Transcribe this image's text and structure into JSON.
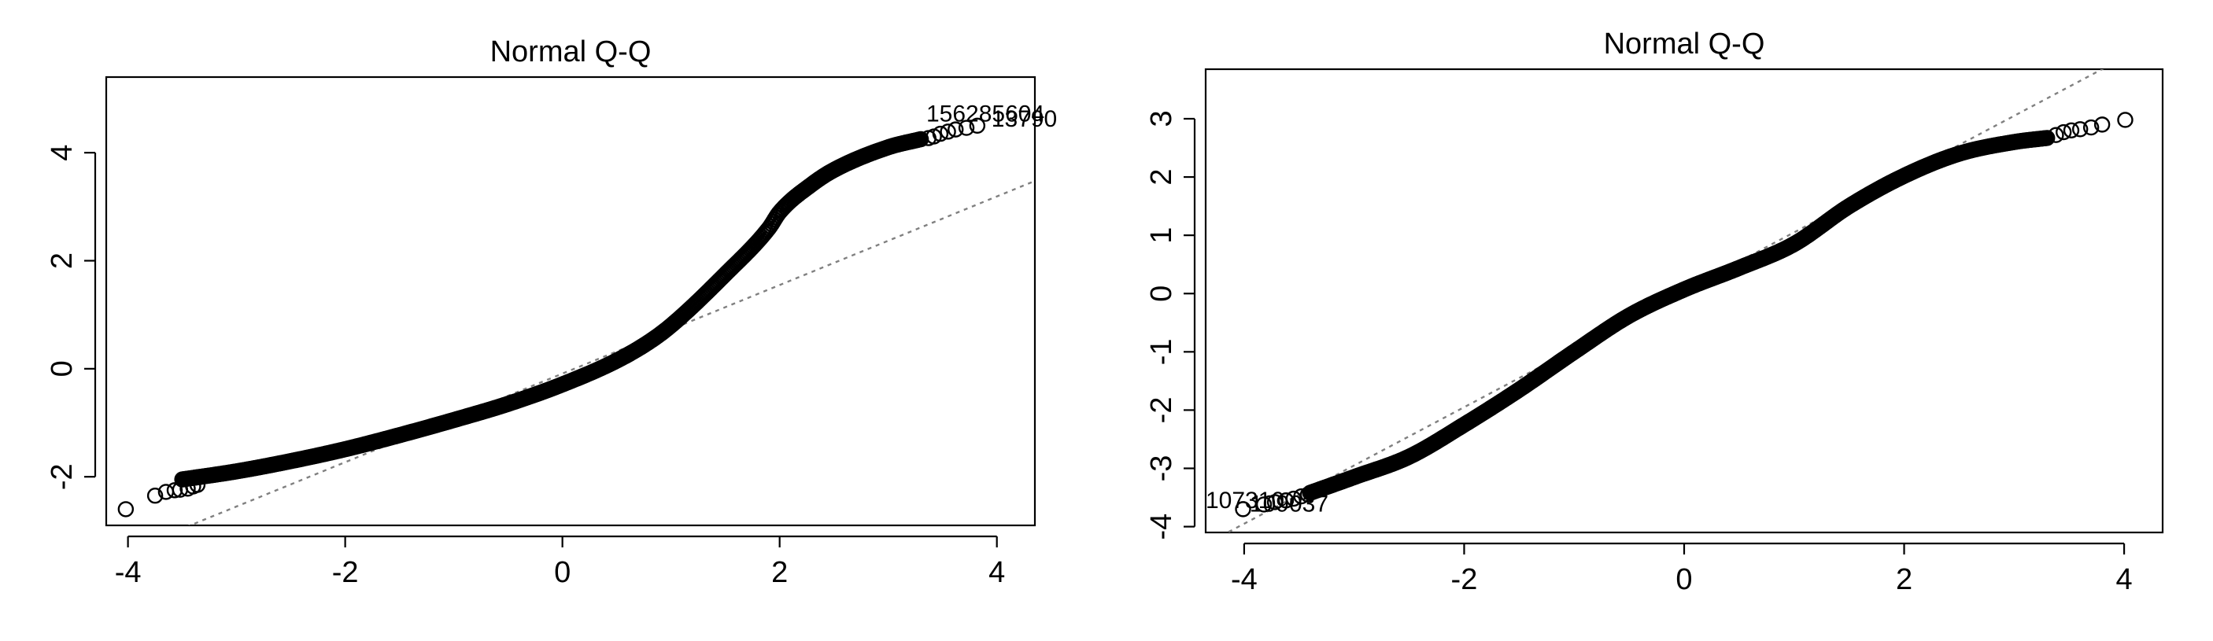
{
  "chart_data": [
    {
      "type": "scatter",
      "title": "Normal Q-Q",
      "xlabel": "",
      "ylabel": "",
      "xlim": [
        -4.2,
        4.35
      ],
      "ylim": [
        -2.9,
        5.4
      ],
      "x_ticks": [
        -4,
        -2,
        0,
        2,
        4
      ],
      "x_tick_labels": [
        "-4",
        "-2",
        "0",
        "2",
        "4"
      ],
      "y_ticks": [
        -2,
        0,
        2,
        4
      ],
      "y_tick_labels": [
        "-2",
        "0",
        "2",
        "4"
      ],
      "reference_line": {
        "slope": 0.82,
        "intercept": -0.09,
        "style": "dashed",
        "color": "#808080"
      },
      "curve": {
        "x": [
          -3.5,
          -3.0,
          -2.5,
          -2.0,
          -1.5,
          -1.0,
          -0.5,
          0.0,
          0.5,
          0.8,
          1.0,
          1.5,
          1.9,
          2.0,
          2.3,
          2.5,
          3.0,
          3.3
        ],
        "y": [
          -2.05,
          -1.9,
          -1.71,
          -1.49,
          -1.23,
          -0.95,
          -0.65,
          -0.29,
          0.15,
          0.5,
          0.8,
          1.75,
          2.6,
          2.9,
          3.42,
          3.68,
          4.1,
          4.25
        ]
      },
      "points": {
        "x": [
          -4.02,
          -3.75,
          -3.65,
          -3.57,
          -3.52,
          -3.45,
          -3.4,
          -3.36,
          3.37,
          3.42,
          3.48,
          3.55,
          3.62,
          3.72,
          3.82
        ],
        "y": [
          -2.6,
          -2.35,
          -2.28,
          -2.25,
          -2.24,
          -2.22,
          -2.18,
          -2.15,
          4.27,
          4.3,
          4.35,
          4.39,
          4.43,
          4.46,
          4.5
        ]
      },
      "annotations": [
        {
          "text": "156285604",
          "x": 3.35,
          "y": 4.58
        },
        {
          "text": "13790",
          "x": 3.95,
          "y": 4.48
        }
      ],
      "grid": false,
      "legend": "none"
    },
    {
      "type": "scatter",
      "title": "Normal Q-Q",
      "xlabel": "",
      "ylabel": "",
      "xlim": [
        -4.35,
        4.35
      ],
      "ylim": [
        -4.1,
        3.85
      ],
      "x_ticks": [
        -4,
        -2,
        0,
        2,
        4
      ],
      "x_tick_labels": [
        "-4",
        "-2",
        "0",
        "2",
        "4"
      ],
      "y_ticks": [
        -4,
        -3,
        -2,
        -1,
        0,
        1,
        2,
        3
      ],
      "y_tick_labels": [
        "-4",
        "-3",
        "-2",
        "-1",
        "0",
        "1",
        "2",
        "3"
      ],
      "reference_line": {
        "slope": 1.0,
        "intercept": 0.05,
        "style": "dashed",
        "color": "#808080"
      },
      "curve": {
        "x": [
          -3.4,
          -3.0,
          -2.5,
          -2.0,
          -1.5,
          -1.0,
          -0.5,
          0.0,
          0.5,
          1.0,
          1.5,
          2.0,
          2.5,
          3.0,
          3.3
        ],
        "y": [
          -3.42,
          -3.15,
          -2.8,
          -2.25,
          -1.65,
          -1.0,
          -0.38,
          0.07,
          0.44,
          0.85,
          1.5,
          2.02,
          2.4,
          2.6,
          2.67
        ]
      },
      "points": {
        "x": [
          -4.01,
          -3.82,
          -3.72,
          -3.62,
          -3.55,
          -3.48,
          -3.42,
          3.38,
          3.45,
          3.52,
          3.6,
          3.7,
          3.8,
          4.01
        ],
        "y": [
          -3.7,
          -3.62,
          -3.58,
          -3.55,
          -3.52,
          -3.48,
          -3.45,
          2.72,
          2.77,
          2.8,
          2.82,
          2.85,
          2.9,
          2.98
        ]
      },
      "annotations": [
        {
          "text": "107310",
          "x": -4.35,
          "y": -3.68
        },
        {
          "text": "109037",
          "x": -3.95,
          "y": -3.74
        }
      ],
      "grid": false,
      "legend": "none"
    }
  ]
}
